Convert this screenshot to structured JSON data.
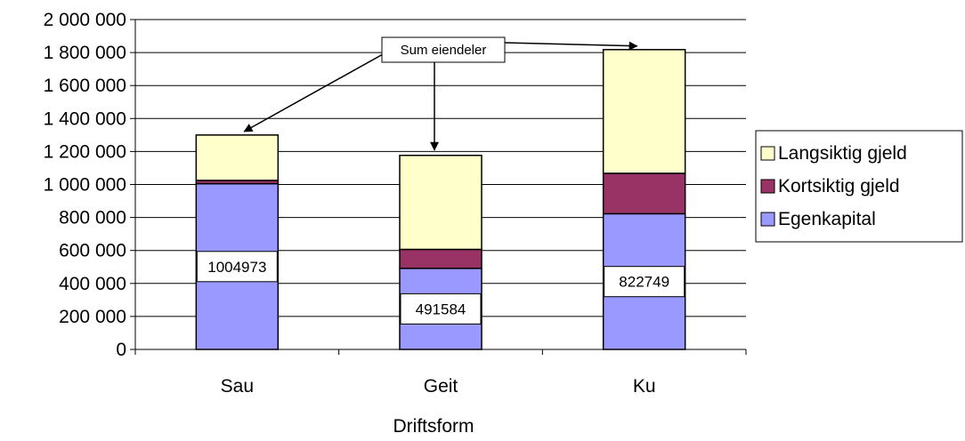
{
  "chart_data": {
    "type": "bar",
    "stacked": true,
    "categories": [
      "Sau",
      "Geit",
      "Ku"
    ],
    "series": [
      {
        "name": "Egenkapital",
        "color": "#9999ff",
        "values": [
          1004973,
          491584,
          822749
        ]
      },
      {
        "name": "Kortsiktig gjeld",
        "color": "#993366",
        "values": [
          20000,
          115000,
          245000
        ]
      },
      {
        "name": "Langsiktig gjeld",
        "color": "#ffffcc",
        "values": [
          275000,
          570000,
          750000
        ]
      }
    ],
    "data_labels": [
      "1004973",
      "491584",
      "822749"
    ],
    "yticks": [
      "0",
      "200 000",
      "400 000",
      "600 000",
      "800 000",
      "1 000 000",
      "1 200 000",
      "1 400 000",
      "1 600 000",
      "1 800 000",
      "2 000 000"
    ],
    "ylim": [
      0,
      2000000
    ],
    "ystep": 200000,
    "xlabel": "Driftsform",
    "ylabel": "",
    "title": "",
    "grid": true,
    "legend_position": "right",
    "annotation": "Sum eiendeler"
  }
}
